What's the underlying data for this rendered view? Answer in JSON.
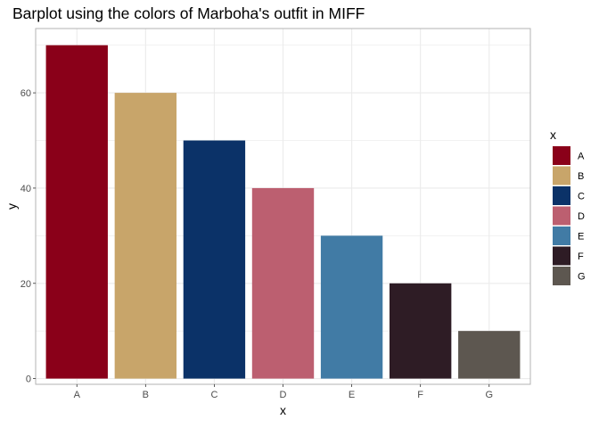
{
  "chart_data": {
    "type": "bar",
    "title": "Barplot using the colors of Marboha's outfit in MIFF",
    "xlabel": "x",
    "ylabel": "y",
    "categories": [
      "A",
      "B",
      "C",
      "D",
      "E",
      "F",
      "G"
    ],
    "values": [
      70,
      60,
      50,
      40,
      30,
      20,
      10
    ],
    "colors": [
      "#8A0019",
      "#C8A56A",
      "#0B3268",
      "#BC5F70",
      "#417BA5",
      "#2E1C25",
      "#5D5750"
    ],
    "ylim": [
      -1.2,
      73.5
    ],
    "yticks": [
      0,
      20,
      40,
      60
    ],
    "yticks_minor": [
      10,
      30,
      50,
      70
    ],
    "grid": true,
    "legend": {
      "title": "x",
      "position": "right",
      "entries": [
        "A",
        "B",
        "C",
        "D",
        "E",
        "F",
        "G"
      ]
    }
  }
}
